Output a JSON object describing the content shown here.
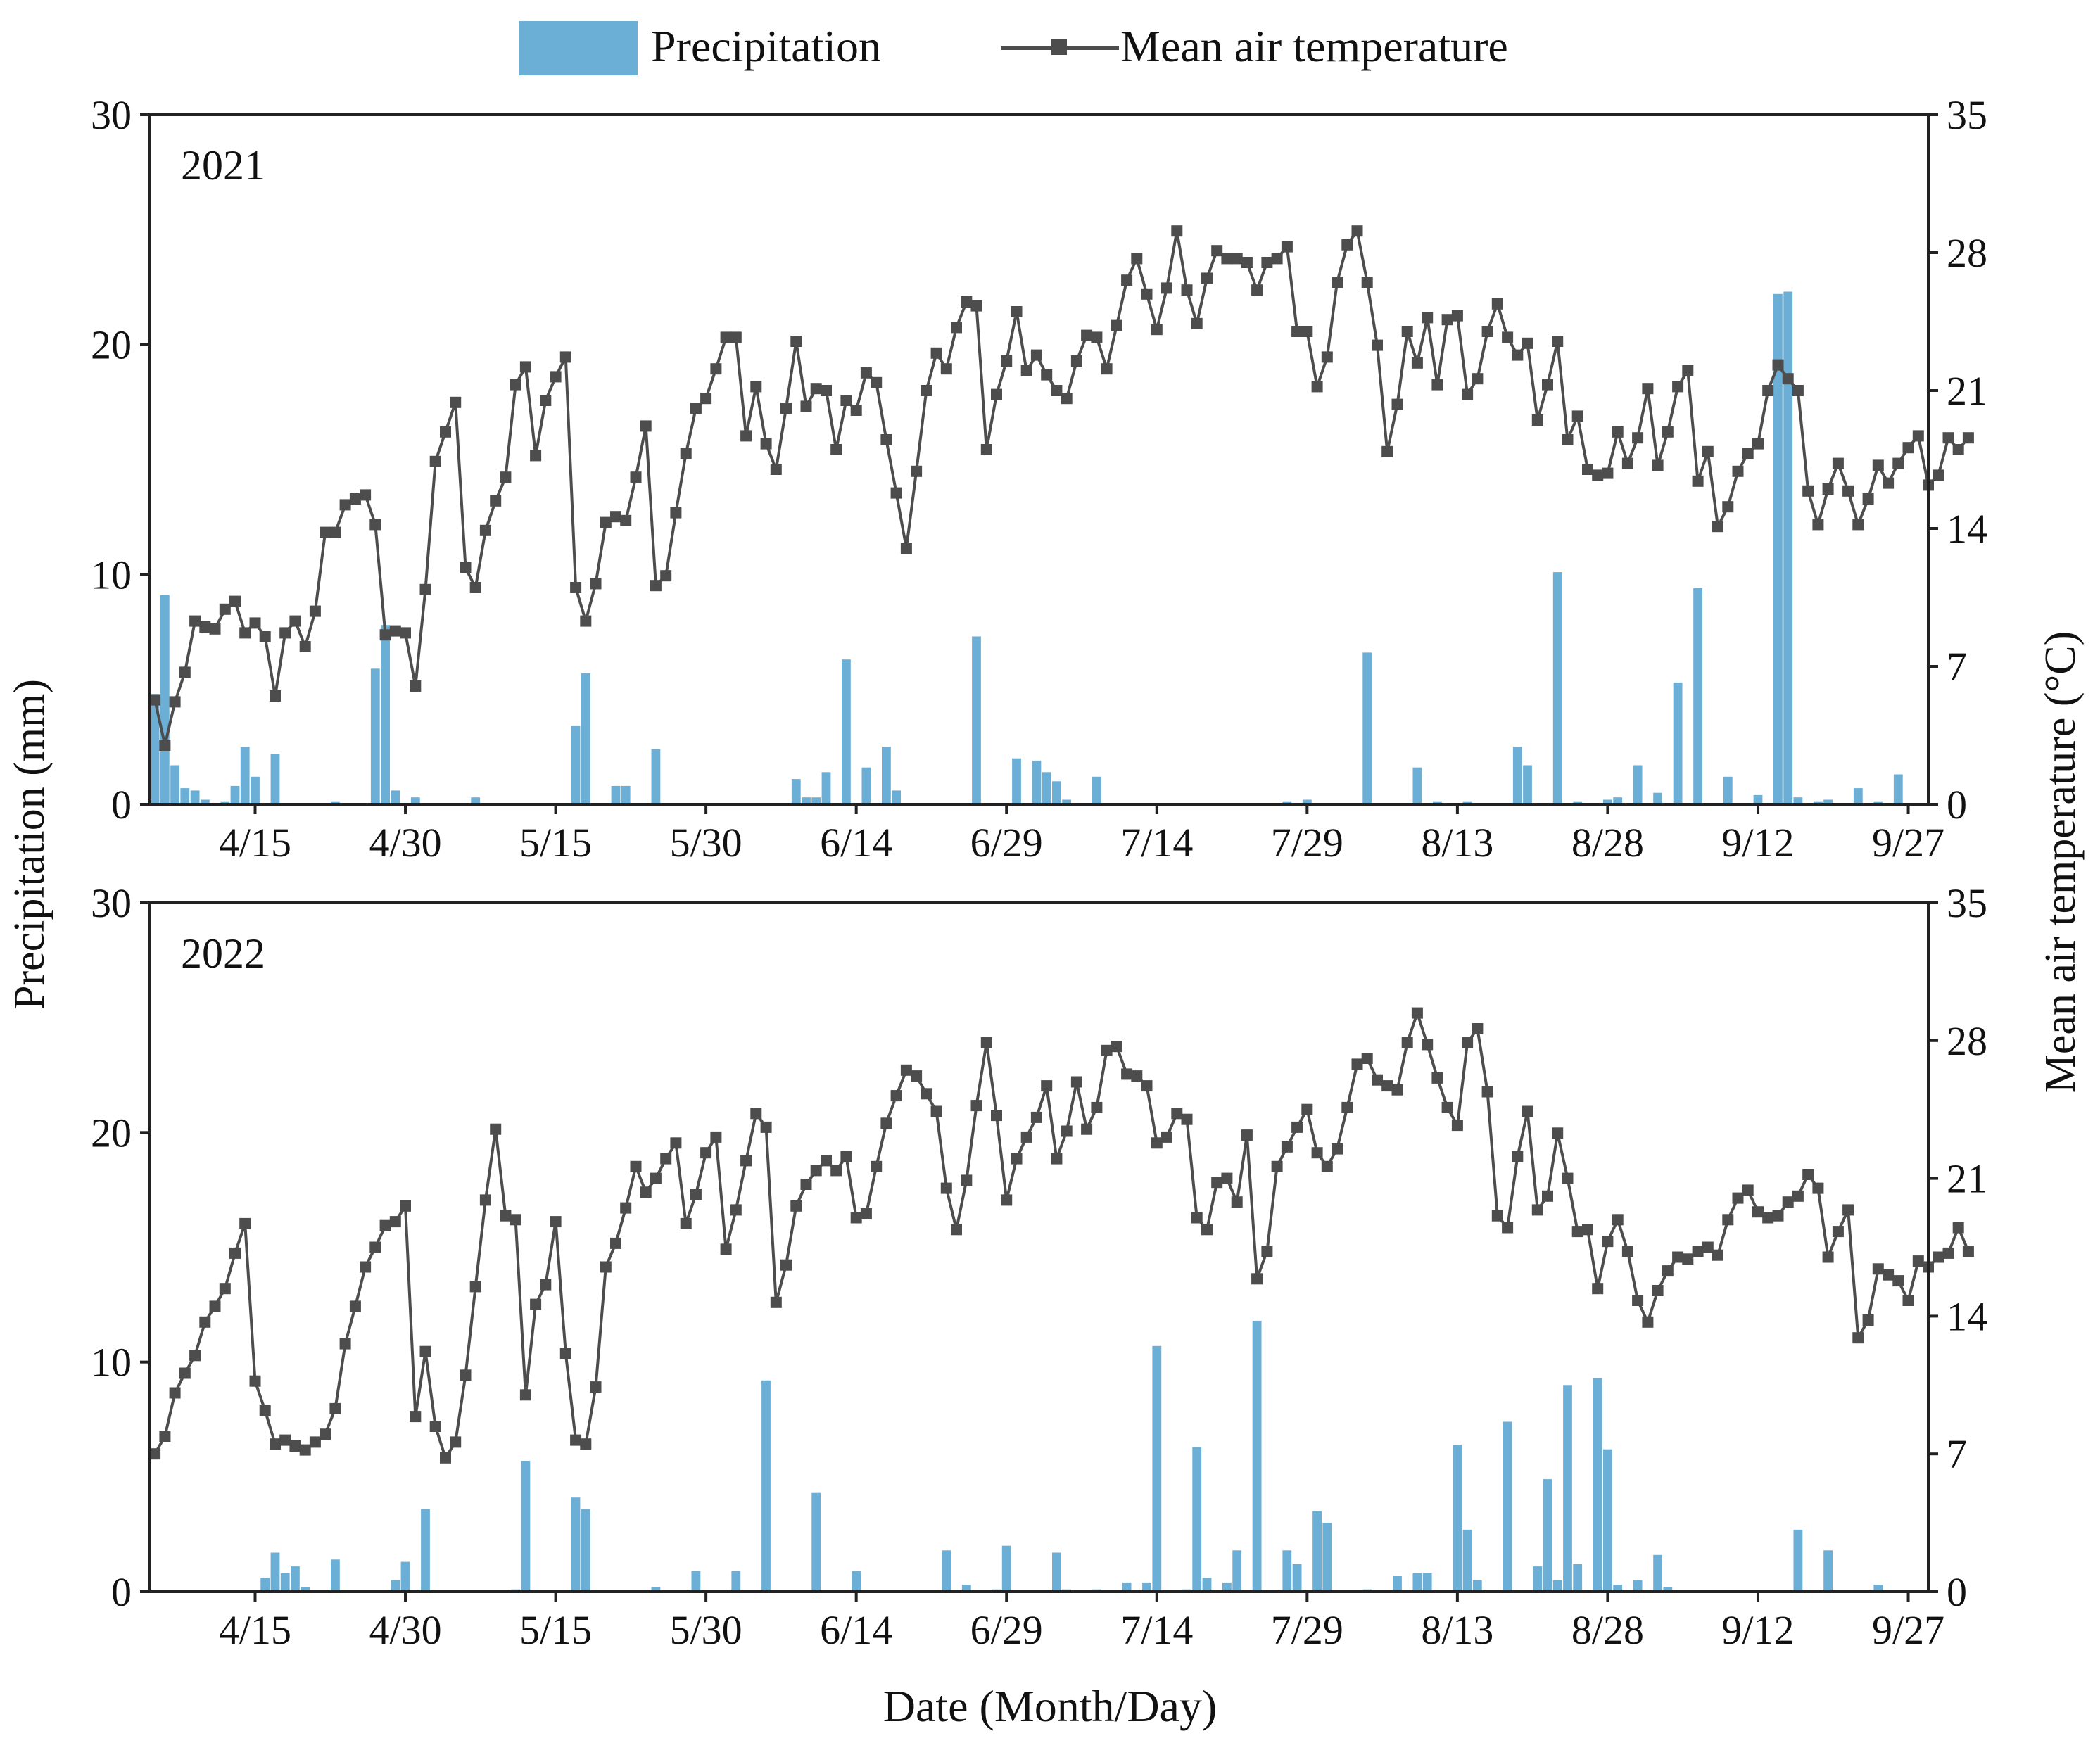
{
  "figure": {
    "legend": {
      "precipitation_label": "Precipitation",
      "temperature_label": "Mean air temperature"
    },
    "left_axis_label": "Precipitation (mm)",
    "right_axis_label": "Mean air temperature (°C)",
    "x_axis_label": "Date (Month/Day)",
    "colors": {
      "bar": "#6baed6",
      "line": "#4d4d4d",
      "axis": "#222222"
    }
  },
  "chart_data": [
    {
      "type": "bar+line",
      "title": "2021",
      "x_start": "04/05",
      "x_ticks": [
        {
          "day": 10,
          "label": "4/15"
        },
        {
          "day": 25,
          "label": "4/30"
        },
        {
          "day": 40,
          "label": "5/15"
        },
        {
          "day": 55,
          "label": "5/30"
        },
        {
          "day": 70,
          "label": "6/14"
        },
        {
          "day": 85,
          "label": "6/29"
        },
        {
          "day": 100,
          "label": "7/14"
        },
        {
          "day": 115,
          "label": "7/29"
        },
        {
          "day": 130,
          "label": "8/13"
        },
        {
          "day": 145,
          "label": "8/28"
        },
        {
          "day": 160,
          "label": "9/12"
        },
        {
          "day": 175,
          "label": "9/27"
        }
      ],
      "xlim": [
        -0.5,
        177
      ],
      "y_left": {
        "label": "Precipitation (mm)",
        "lim": [
          0,
          30
        ],
        "ticks": [
          0,
          10,
          20,
          30
        ]
      },
      "y_right": {
        "label": "Mean air temperature (°C)",
        "lim": [
          0,
          35
        ],
        "ticks": [
          0,
          7,
          14,
          21,
          28,
          35
        ]
      },
      "precipitation": [
        {
          "day": 0,
          "value": 4.8
        },
        {
          "day": 1,
          "value": 9.1
        },
        {
          "day": 2,
          "value": 1.7
        },
        {
          "day": 3,
          "value": 0.7
        },
        {
          "day": 4,
          "value": 0.6
        },
        {
          "day": 5,
          "value": 0.2
        },
        {
          "day": 7,
          "value": 0.1
        },
        {
          "day": 8,
          "value": 0.8
        },
        {
          "day": 9,
          "value": 2.5
        },
        {
          "day": 10,
          "value": 1.2
        },
        {
          "day": 12,
          "value": 2.2
        },
        {
          "day": 18,
          "value": 0.1
        },
        {
          "day": 22,
          "value": 5.9
        },
        {
          "day": 23,
          "value": 7.8
        },
        {
          "day": 24,
          "value": 0.6
        },
        {
          "day": 26,
          "value": 0.3
        },
        {
          "day": 32,
          "value": 0.3
        },
        {
          "day": 42,
          "value": 3.4
        },
        {
          "day": 43,
          "value": 5.7
        },
        {
          "day": 46,
          "value": 0.8
        },
        {
          "day": 47,
          "value": 0.8
        },
        {
          "day": 50,
          "value": 2.4
        },
        {
          "day": 64,
          "value": 1.1
        },
        {
          "day": 65,
          "value": 0.3
        },
        {
          "day": 66,
          "value": 0.3
        },
        {
          "day": 67,
          "value": 1.4
        },
        {
          "day": 69,
          "value": 6.3
        },
        {
          "day": 71,
          "value": 1.6
        },
        {
          "day": 73,
          "value": 2.5
        },
        {
          "day": 74,
          "value": 0.6
        },
        {
          "day": 82,
          "value": 7.3
        },
        {
          "day": 86,
          "value": 2.0
        },
        {
          "day": 88,
          "value": 1.9
        },
        {
          "day": 89,
          "value": 1.4
        },
        {
          "day": 90,
          "value": 1.0
        },
        {
          "day": 91,
          "value": 0.2
        },
        {
          "day": 94,
          "value": 1.2
        },
        {
          "day": 113,
          "value": 0.1
        },
        {
          "day": 115,
          "value": 0.2
        },
        {
          "day": 121,
          "value": 6.6
        },
        {
          "day": 126,
          "value": 1.6
        },
        {
          "day": 128,
          "value": 0.1
        },
        {
          "day": 131,
          "value": 0.1
        },
        {
          "day": 136,
          "value": 2.5
        },
        {
          "day": 137,
          "value": 1.7
        },
        {
          "day": 140,
          "value": 10.1
        },
        {
          "day": 142,
          "value": 0.1
        },
        {
          "day": 145,
          "value": 0.2
        },
        {
          "day": 146,
          "value": 0.3
        },
        {
          "day": 148,
          "value": 1.7
        },
        {
          "day": 150,
          "value": 0.5
        },
        {
          "day": 152,
          "value": 5.3
        },
        {
          "day": 154,
          "value": 9.4
        },
        {
          "day": 157,
          "value": 1.2
        },
        {
          "day": 160,
          "value": 0.4
        },
        {
          "day": 162,
          "value": 22.2
        },
        {
          "day": 163,
          "value": 22.3
        },
        {
          "day": 164,
          "value": 0.3
        },
        {
          "day": 166,
          "value": 0.1
        },
        {
          "day": 167,
          "value": 0.2
        },
        {
          "day": 170,
          "value": 0.7
        },
        {
          "day": 172,
          "value": 0.1
        },
        {
          "day": 174,
          "value": 1.3
        }
      ],
      "temperature": [
        5.3,
        3.0,
        5.2,
        6.7,
        9.3,
        9.0,
        8.9,
        9.9,
        10.3,
        8.7,
        9.2,
        8.5,
        5.5,
        8.7,
        9.3,
        8.0,
        9.8,
        13.8,
        13.8,
        15.2,
        15.5,
        15.7,
        14.2,
        8.6,
        8.8,
        8.7,
        6.0,
        10.9,
        17.4,
        18.9,
        20.4,
        12.0,
        11.0,
        13.9,
        15.4,
        16.6,
        21.3,
        22.2,
        17.7,
        20.5,
        21.7,
        22.7,
        11.0,
        9.3,
        11.2,
        14.3,
        14.6,
        14.4,
        16.6,
        19.2,
        11.1,
        11.6,
        14.8,
        17.8,
        20.1,
        20.6,
        22.1,
        23.7,
        23.7,
        18.7,
        21.2,
        18.3,
        17.0,
        20.1,
        23.5,
        20.2,
        21.1,
        21.0,
        18.0,
        20.5,
        20.0,
        21.9,
        21.4,
        18.5,
        15.8,
        13.0,
        16.9,
        21.0,
        22.9,
        22.1,
        24.2,
        25.5,
        25.3,
        18.0,
        20.8,
        22.5,
        25.0,
        22.0,
        22.8,
        21.8,
        21.0,
        20.6,
        22.5,
        23.8,
        23.7,
        22.1,
        24.3,
        26.6,
        27.7,
        25.9,
        24.1,
        26.2,
        29.1,
        26.1,
        24.4,
        26.7,
        28.1,
        27.7,
        27.7,
        27.5,
        26.1,
        27.5,
        27.7,
        28.3,
        24.0,
        24.0,
        21.2,
        22.7,
        26.5,
        28.4,
        29.1,
        26.5,
        23.3,
        17.9,
        20.3,
        24.0,
        22.4,
        24.7,
        21.3,
        24.6,
        24.8,
        20.8,
        21.6,
        24.0,
        25.4,
        23.7,
        22.8,
        23.4,
        19.5,
        21.3,
        23.5,
        18.5,
        19.7,
        17.0,
        16.7,
        16.8,
        18.9,
        17.3,
        18.6,
        21.1,
        17.2,
        18.9,
        21.2,
        22.0,
        16.4,
        17.9,
        14.1,
        15.1,
        16.9,
        17.8,
        18.3,
        21.0,
        22.3,
        21.6,
        21.0,
        15.9,
        14.2,
        16.0,
        17.3,
        15.9,
        14.2,
        15.5,
        17.2,
        16.3,
        17.3,
        18.1,
        18.7,
        16.2,
        16.7,
        18.6,
        18.0,
        18.6
      ]
    },
    {
      "type": "bar+line",
      "title": "2022",
      "x_start": "04/05",
      "x_ticks": [
        {
          "day": 10,
          "label": "4/15"
        },
        {
          "day": 25,
          "label": "4/30"
        },
        {
          "day": 40,
          "label": "5/15"
        },
        {
          "day": 55,
          "label": "5/30"
        },
        {
          "day": 70,
          "label": "6/14"
        },
        {
          "day": 85,
          "label": "6/29"
        },
        {
          "day": 100,
          "label": "7/14"
        },
        {
          "day": 115,
          "label": "7/29"
        },
        {
          "day": 130,
          "label": "8/13"
        },
        {
          "day": 145,
          "label": "8/28"
        },
        {
          "day": 160,
          "label": "9/12"
        },
        {
          "day": 175,
          "label": "9/27"
        }
      ],
      "xlim": [
        -0.5,
        177
      ],
      "y_left": {
        "label": "Precipitation (mm)",
        "lim": [
          0,
          30
        ],
        "ticks": [
          0,
          10,
          20,
          30
        ]
      },
      "y_right": {
        "label": "Mean air temperature (°C)",
        "lim": [
          0,
          35
        ],
        "ticks": [
          0,
          7,
          14,
          21,
          28,
          35
        ]
      },
      "precipitation": [
        {
          "day": 11,
          "value": 0.6
        },
        {
          "day": 12,
          "value": 1.7
        },
        {
          "day": 13,
          "value": 0.8
        },
        {
          "day": 14,
          "value": 1.1
        },
        {
          "day": 15,
          "value": 0.2
        },
        {
          "day": 18,
          "value": 1.4
        },
        {
          "day": 24,
          "value": 0.5
        },
        {
          "day": 25,
          "value": 1.3
        },
        {
          "day": 27,
          "value": 3.6
        },
        {
          "day": 36,
          "value": 0.1
        },
        {
          "day": 37,
          "value": 5.7
        },
        {
          "day": 42,
          "value": 4.1
        },
        {
          "day": 43,
          "value": 3.6
        },
        {
          "day": 50,
          "value": 0.2
        },
        {
          "day": 54,
          "value": 0.9
        },
        {
          "day": 58,
          "value": 0.9
        },
        {
          "day": 61,
          "value": 9.2
        },
        {
          "day": 66,
          "value": 4.3
        },
        {
          "day": 70,
          "value": 0.9
        },
        {
          "day": 79,
          "value": 1.8
        },
        {
          "day": 81,
          "value": 0.3
        },
        {
          "day": 84,
          "value": 0.1
        },
        {
          "day": 85,
          "value": 2.0
        },
        {
          "day": 90,
          "value": 1.7
        },
        {
          "day": 91,
          "value": 0.1
        },
        {
          "day": 94,
          "value": 0.1
        },
        {
          "day": 97,
          "value": 0.4
        },
        {
          "day": 99,
          "value": 0.4
        },
        {
          "day": 100,
          "value": 10.7
        },
        {
          "day": 103,
          "value": 0.1
        },
        {
          "day": 104,
          "value": 6.3
        },
        {
          "day": 105,
          "value": 0.6
        },
        {
          "day": 107,
          "value": 0.4
        },
        {
          "day": 108,
          "value": 1.8
        },
        {
          "day": 110,
          "value": 11.8
        },
        {
          "day": 113,
          "value": 1.8
        },
        {
          "day": 114,
          "value": 1.2
        },
        {
          "day": 116,
          "value": 3.5
        },
        {
          "day": 117,
          "value": 3.0
        },
        {
          "day": 121,
          "value": 0.1
        },
        {
          "day": 124,
          "value": 0.7
        },
        {
          "day": 126,
          "value": 0.8
        },
        {
          "day": 127,
          "value": 0.8
        },
        {
          "day": 130,
          "value": 6.4
        },
        {
          "day": 131,
          "value": 2.7
        },
        {
          "day": 132,
          "value": 0.5
        },
        {
          "day": 135,
          "value": 7.4
        },
        {
          "day": 138,
          "value": 1.1
        },
        {
          "day": 139,
          "value": 4.9
        },
        {
          "day": 140,
          "value": 0.5
        },
        {
          "day": 141,
          "value": 9.0
        },
        {
          "day": 142,
          "value": 1.2
        },
        {
          "day": 144,
          "value": 9.3
        },
        {
          "day": 145,
          "value": 6.2
        },
        {
          "day": 146,
          "value": 0.3
        },
        {
          "day": 148,
          "value": 0.5
        },
        {
          "day": 150,
          "value": 1.6
        },
        {
          "day": 151,
          "value": 0.2
        },
        {
          "day": 164,
          "value": 2.7
        },
        {
          "day": 167,
          "value": 1.8
        },
        {
          "day": 172,
          "value": 0.3
        }
      ],
      "temperature": [
        7.0,
        7.9,
        10.1,
        11.1,
        12.0,
        13.7,
        14.5,
        15.4,
        17.2,
        18.7,
        10.7,
        9.2,
        7.5,
        7.7,
        7.4,
        7.2,
        7.6,
        8.0,
        9.3,
        12.6,
        14.5,
        16.5,
        17.5,
        18.6,
        18.8,
        19.6,
        8.9,
        12.2,
        8.4,
        6.8,
        7.6,
        11.0,
        15.5,
        19.9,
        23.5,
        19.1,
        18.9,
        10.0,
        14.6,
        15.6,
        18.8,
        12.1,
        7.7,
        7.5,
        10.4,
        16.5,
        17.7,
        19.5,
        21.6,
        20.3,
        21.0,
        22.0,
        22.8,
        18.7,
        20.2,
        22.3,
        23.1,
        17.4,
        19.4,
        21.9,
        24.3,
        23.6,
        14.7,
        16.6,
        19.6,
        20.7,
        21.4,
        21.9,
        21.4,
        22.1,
        19.0,
        19.2,
        21.6,
        23.8,
        25.2,
        26.5,
        26.2,
        25.3,
        24.4,
        20.5,
        18.4,
        20.9,
        24.7,
        27.9,
        24.2,
        19.9,
        22.0,
        23.1,
        24.1,
        25.7,
        22.0,
        23.4,
        25.9,
        23.5,
        24.6,
        27.5,
        27.7,
        26.3,
        26.2,
        25.7,
        22.8,
        23.1,
        24.3,
        24.0,
        19.0,
        18.4,
        20.8,
        21.0,
        19.8,
        23.2,
        15.9,
        17.3,
        21.6,
        22.6,
        23.6,
        24.5,
        22.3,
        21.6,
        22.5,
        24.6,
        26.8,
        27.1,
        26.0,
        25.7,
        25.5,
        27.9,
        29.4,
        27.8,
        26.1,
        24.6,
        23.7,
        27.9,
        28.6,
        25.4,
        19.1,
        18.5,
        22.1,
        24.4,
        19.4,
        20.1,
        23.3,
        21.0,
        18.3,
        18.4,
        15.4,
        17.8,
        18.9,
        17.3,
        14.8,
        13.7,
        15.3,
        16.3,
        17.0,
        16.9,
        17.3,
        17.5,
        17.1,
        18.9,
        20.0,
        20.4,
        19.3,
        19.0,
        19.1,
        19.8,
        20.1,
        21.2,
        20.5,
        17.0,
        18.3,
        19.4,
        12.9,
        13.8,
        16.4,
        16.1,
        15.8,
        14.8,
        16.8,
        16.5,
        17.0,
        17.2,
        18.5,
        17.3
      ]
    }
  ]
}
